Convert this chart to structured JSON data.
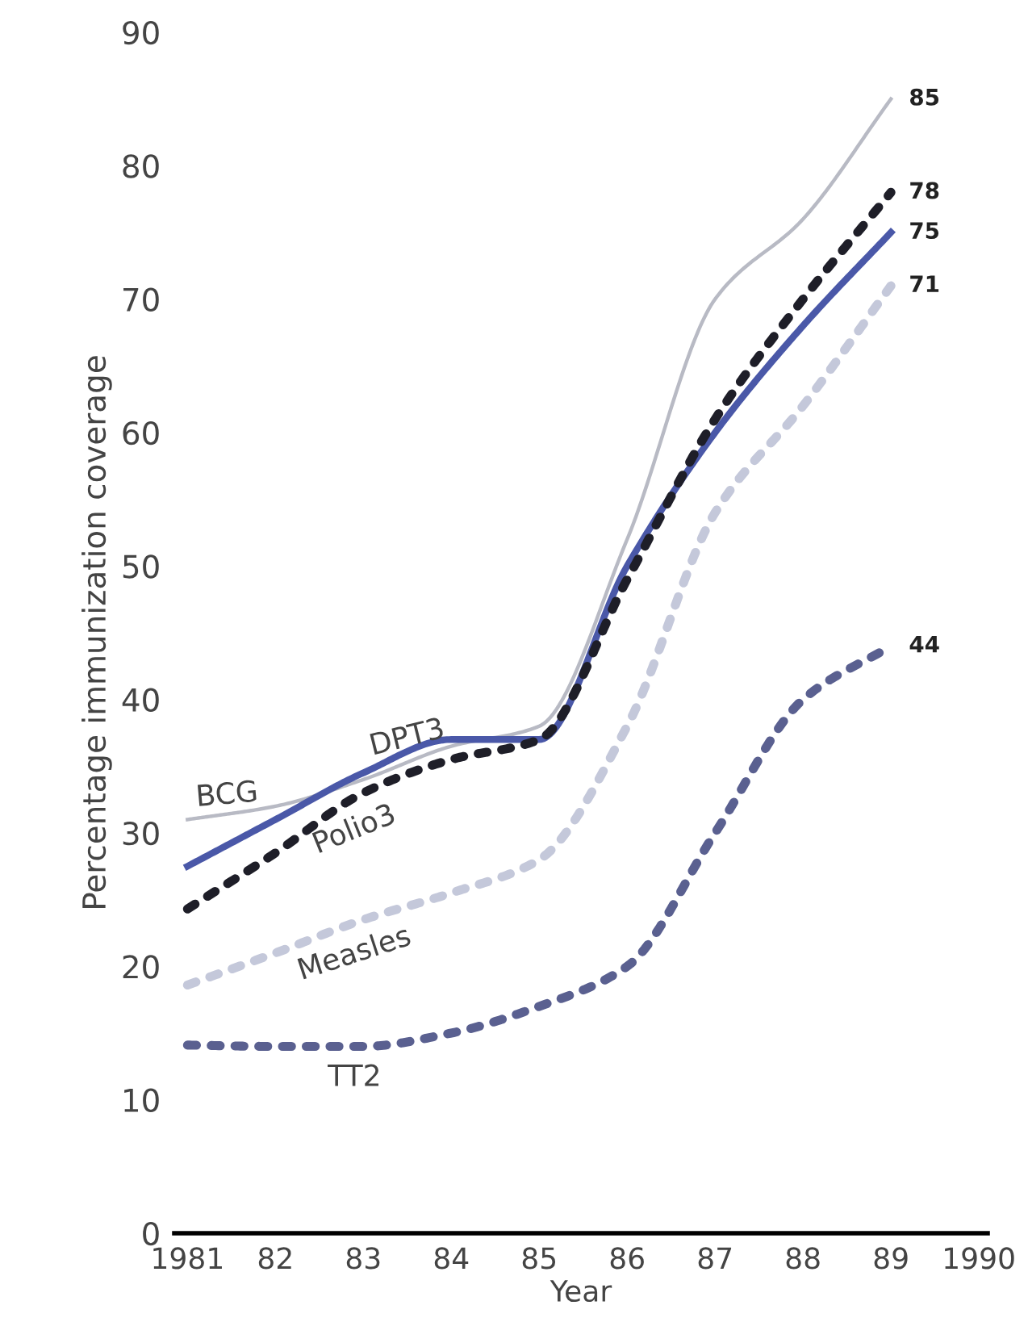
{
  "chart_data": {
    "type": "line",
    "xlabel": "Year",
    "ylabel": "Percentage immunization coverage",
    "x": [
      1981,
      1982,
      1983,
      1984,
      1985,
      1986,
      1987,
      1988,
      1989
    ],
    "series": [
      {
        "name": "BCG",
        "color": "#b8bac4",
        "line_style": "solid",
        "values": [
          31,
          32,
          34,
          36.5,
          38,
          52,
          70,
          76,
          85
        ],
        "value_labels": [
          null,
          null,
          null,
          null,
          null,
          null,
          null,
          null,
          "85"
        ]
      },
      {
        "name": "DPT3",
        "color": "#4a58a8",
        "line_style": "solid",
        "values": [
          27.5,
          31,
          34.5,
          37,
          37,
          50,
          60,
          68,
          75
        ],
        "value_labels": [
          null,
          null,
          null,
          null,
          null,
          null,
          null,
          null,
          "75"
        ]
      },
      {
        "name": "Polio3",
        "color": "#1e1e28",
        "line_style": "dotted",
        "values": [
          24.3,
          28.5,
          33,
          35.5,
          37,
          49,
          61,
          70,
          78
        ],
        "value_labels": [
          null,
          null,
          null,
          null,
          null,
          null,
          null,
          null,
          "78"
        ]
      },
      {
        "name": "Measles",
        "color": "#c4c8da",
        "line_style": "dotted",
        "values": [
          18.6,
          21,
          23.5,
          25.5,
          28,
          38,
          54,
          62,
          71
        ],
        "value_labels": [
          null,
          null,
          null,
          null,
          null,
          null,
          null,
          null,
          "71"
        ]
      },
      {
        "name": "TT2",
        "color": "#5a6090",
        "line_style": "dotted",
        "values": [
          14.1,
          14,
          14,
          15,
          17,
          20,
          30,
          40,
          44
        ],
        "value_labels": [
          null,
          null,
          null,
          null,
          null,
          null,
          null,
          null,
          "44"
        ]
      }
    ],
    "xlim": [
      1980.85,
      1990.1
    ],
    "ylim": [
      0,
      90
    ],
    "xticks": [
      1981,
      {
        "value": 1982,
        "label": "82"
      },
      {
        "value": 1983,
        "label": "83"
      },
      {
        "value": 1984,
        "label": "84"
      },
      {
        "value": 1985,
        "label": "85"
      },
      {
        "value": 1986,
        "label": "86"
      },
      {
        "value": 1987,
        "label": "87"
      },
      {
        "value": 1988,
        "label": "88"
      },
      {
        "value": 1989,
        "label": "89"
      },
      1990
    ],
    "yticks": [
      0,
      10,
      20,
      30,
      40,
      50,
      60,
      70,
      80,
      90
    ],
    "grid": false,
    "legend": false,
    "marker": "none"
  }
}
